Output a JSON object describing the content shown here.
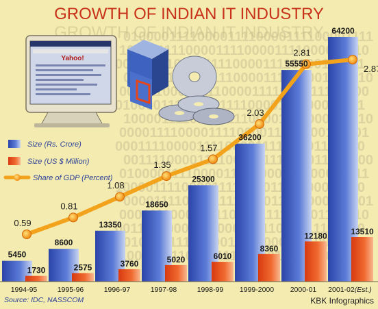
{
  "title": "GROWTH OF INDIAN IT INDUSTRY",
  "source": "Source: IDC, NASSCOM",
  "credit": "KBK Infographics",
  "illustration": {
    "screen_logo": "Yahoo!"
  },
  "colors": {
    "background": "#f3ebb0",
    "title": "#c8321a",
    "size_rs": "#3a56b8",
    "size_usd": "#e8461a",
    "gdp_line": "#f3a21b",
    "digits": "#ddd3a0"
  },
  "legend": [
    {
      "key": "size_rs",
      "label": "Size (Rs. Crore)"
    },
    {
      "key": "size_usd",
      "label": "Size (US $ Million)"
    },
    {
      "key": "gdp",
      "label": "Share of GDP (Percent)"
    }
  ],
  "chart_data": {
    "type": "bar",
    "categories": [
      "1994-95",
      "1995-96",
      "1996-97",
      "1997-98",
      "1998-99",
      "1999-2000",
      "2000-01",
      "2001-02"
    ],
    "category_suffix": [
      "",
      "",
      "",
      "",
      "",
      "",
      "",
      "(Est.)"
    ],
    "series": [
      {
        "name": "Size (Rs. Crore)",
        "values": [
          5450,
          8600,
          13350,
          18650,
          25300,
          36200,
          55550,
          64200
        ]
      },
      {
        "name": "Size (US $ Million)",
        "values": [
          1730,
          2575,
          3760,
          5020,
          6010,
          8360,
          12180,
          13510
        ]
      },
      {
        "name": "Share of GDP (Percent)",
        "type": "line",
        "values": [
          0.59,
          0.81,
          1.08,
          1.35,
          1.57,
          2.03,
          2.81,
          2.87
        ]
      }
    ],
    "legend_position": "left",
    "grid": false
  }
}
